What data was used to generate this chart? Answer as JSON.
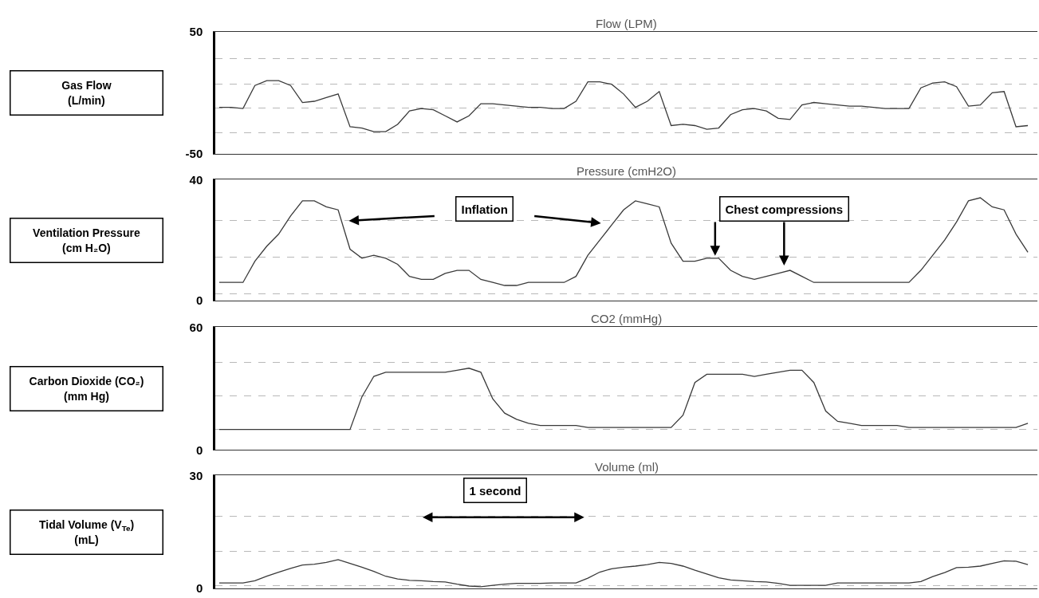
{
  "chart_data": [
    {
      "type": "line",
      "title": "Flow (LPM)",
      "ylabel": "Gas Flow\n(L/min)",
      "color": "#3a3a3a",
      "grid": "y",
      "tick_labels": "y",
      "categories": [
        null,
        null,
        null,
        null,
        null,
        null,
        null,
        null,
        null,
        null,
        null,
        null,
        null,
        null,
        null,
        null,
        null,
        null,
        null,
        null,
        null,
        null,
        null,
        null,
        null,
        null,
        null,
        null,
        null,
        null,
        null,
        null,
        null,
        null,
        null,
        null,
        null,
        null,
        null,
        null,
        null,
        null,
        null,
        null,
        null,
        null,
        null,
        null,
        null,
        null,
        null,
        null,
        null,
        null,
        null,
        null,
        null,
        null,
        null,
        null,
        null,
        null,
        null,
        null,
        null,
        null,
        null,
        null,
        null
      ],
      "values": [
        -12,
        -12,
        -13,
        6,
        10,
        10,
        6,
        -8,
        -7,
        -4,
        -1,
        -28,
        -29,
        -32,
        -32,
        -26,
        -15,
        -13,
        -14,
        -19,
        -24,
        -19,
        -9,
        -9,
        -10,
        -11,
        -12,
        -12,
        -13,
        -13,
        -7,
        9,
        9,
        7,
        -1,
        -12,
        -7,
        1,
        -27,
        -26,
        -27,
        -30,
        -29,
        -18,
        -14,
        -13,
        -15,
        -21,
        -22,
        -10,
        -8,
        -9,
        -10,
        -11,
        -11,
        -12,
        -13,
        -13,
        -13,
        4,
        8,
        9,
        5,
        -11,
        -10,
        0,
        1,
        -28,
        -27
      ],
      "ylim": [
        -50,
        50
      ],
      "yticks": [
        -50,
        {
          "value": -33,
          "label": null
        },
        {
          "value": -12.5,
          "label": null
        },
        {
          "value": 7,
          "label": null
        },
        {
          "value": 28,
          "label": null
        },
        50
      ]
    },
    {
      "type": "line",
      "title": "Pressure (cmH2O)",
      "ylabel": "Ventilation Pressure\n(cm H₂O)",
      "color": "#3a3a3a",
      "grid": "y",
      "tick_labels": "y",
      "categories": [
        null,
        null,
        null,
        null,
        null,
        null,
        null,
        null,
        null,
        null,
        null,
        null,
        null,
        null,
        null,
        null,
        null,
        null,
        null,
        null,
        null,
        null,
        null,
        null,
        null,
        null,
        null,
        null,
        null,
        null,
        null,
        null,
        null,
        null,
        null,
        null,
        null,
        null,
        null,
        null,
        null,
        null,
        null,
        null,
        null,
        null,
        null,
        null,
        null,
        null,
        null,
        null,
        null,
        null,
        null,
        null,
        null,
        null,
        null,
        null,
        null,
        null,
        null,
        null,
        null,
        null,
        null,
        null,
        null
      ],
      "values": [
        6,
        6,
        6,
        13,
        18,
        22,
        28,
        33,
        33,
        31,
        30,
        17,
        14,
        15,
        14,
        12,
        8,
        7,
        7,
        9,
        10,
        10,
        7,
        6,
        5,
        5,
        6,
        6,
        6,
        6,
        8,
        15,
        20,
        25,
        30,
        33,
        32,
        31,
        19,
        13,
        13,
        14,
        14,
        10,
        8,
        7,
        8,
        9,
        10,
        8,
        6,
        6,
        6,
        6,
        6,
        6,
        6,
        6,
        6,
        10,
        15,
        20,
        26,
        33,
        34,
        31,
        30,
        22,
        16
      ],
      "ylim": [
        0,
        40
      ],
      "yticks": [
        0,
        {
          "value": 2.3,
          "label": null
        },
        {
          "value": 14.3,
          "label": null
        },
        {
          "value": 26.4,
          "label": null
        },
        40
      ],
      "annotations": [
        "Inflation",
        "Chest compressions"
      ]
    },
    {
      "type": "line",
      "title": "CO2 (mmHg)",
      "ylabel": "Carbon Dioxide (CO₂)\n(mm Hg)",
      "color": "#3a3a3a",
      "grid": "y",
      "tick_labels": "y",
      "categories": [
        null,
        null,
        null,
        null,
        null,
        null,
        null,
        null,
        null,
        null,
        null,
        null,
        null,
        null,
        null,
        null,
        null,
        null,
        null,
        null,
        null,
        null,
        null,
        null,
        null,
        null,
        null,
        null,
        null,
        null,
        null,
        null,
        null,
        null,
        null,
        null,
        null,
        null,
        null,
        null,
        null,
        null,
        null,
        null,
        null,
        null,
        null,
        null,
        null,
        null,
        null,
        null,
        null,
        null,
        null,
        null,
        null,
        null,
        null,
        null,
        null,
        null,
        null,
        null,
        null,
        null,
        null,
        null,
        null
      ],
      "values": [
        10,
        10,
        10,
        10,
        10,
        10,
        10,
        10,
        10,
        10,
        10,
        10,
        26,
        36,
        38,
        38,
        38,
        38,
        38,
        38,
        39,
        40,
        38,
        25,
        18,
        15,
        13,
        12,
        12,
        12,
        12,
        11,
        11,
        11,
        11,
        11,
        11,
        11,
        11,
        17,
        33,
        37,
        37,
        37,
        37,
        36,
        37,
        38,
        39,
        39,
        33,
        19,
        14,
        13,
        12,
        12,
        12,
        12,
        11,
        11,
        11,
        11,
        11,
        11,
        11,
        11,
        11,
        11,
        13
      ],
      "ylim": [
        0,
        60
      ],
      "yticks": [
        0,
        {
          "value": 10.1,
          "label": null
        },
        {
          "value": 26.4,
          "label": null
        },
        {
          "value": 42.7,
          "label": null
        },
        60
      ]
    },
    {
      "type": "line",
      "title": "Volume (ml)",
      "ylabel": "Tidal Volume (V$_{Te}$)\n(mL)",
      "color": "#3a3a3a",
      "grid": "y",
      "tick_labels": "y",
      "categories": [
        null,
        null,
        null,
        null,
        null,
        null,
        null,
        null,
        null,
        null,
        null,
        null,
        null,
        null,
        null,
        null,
        null,
        null,
        null,
        null,
        null,
        null,
        null,
        null,
        null,
        null,
        null,
        null,
        null,
        null,
        null,
        null,
        null,
        null,
        null,
        null,
        null,
        null,
        null,
        null,
        null,
        null,
        null,
        null,
        null,
        null,
        null,
        null,
        null,
        null,
        null,
        null,
        null,
        null,
        null,
        null,
        null,
        null,
        null,
        null,
        null,
        null,
        null,
        null,
        null,
        null,
        null,
        null,
        null
      ],
      "values": [
        1.4,
        1.4,
        1.4,
        2.0,
        3.2,
        4.3,
        5.3,
        6.2,
        6.4,
        6.9,
        7.6,
        6.6,
        5.6,
        4.5,
        3.2,
        2.5,
        2.1,
        2.0,
        1.8,
        1.7,
        1.1,
        0.6,
        0.4,
        0.8,
        1.1,
        1.3,
        1.3,
        1.3,
        1.4,
        1.4,
        1.4,
        2.7,
        4.3,
        5.2,
        5.6,
        5.9,
        6.3,
        6.9,
        6.6,
        5.9,
        4.8,
        3.8,
        2.8,
        2.2,
        2.0,
        1.8,
        1.7,
        1.3,
        0.8,
        0.8,
        0.8,
        0.8,
        1.4,
        1.4,
        1.4,
        1.4,
        1.4,
        1.4,
        1.4,
        1.8,
        3.1,
        4.2,
        5.5,
        5.6,
        5.9,
        6.6,
        7.3,
        7.2,
        6.3
      ],
      "ylim": [
        0,
        30
      ],
      "yticks": [
        0,
        {
          "value": 0.7,
          "label": null
        },
        {
          "value": 9.8,
          "label": null
        },
        {
          "value": 19.2,
          "label": null
        },
        30
      ],
      "annotations": [
        "1 second"
      ]
    }
  ]
}
